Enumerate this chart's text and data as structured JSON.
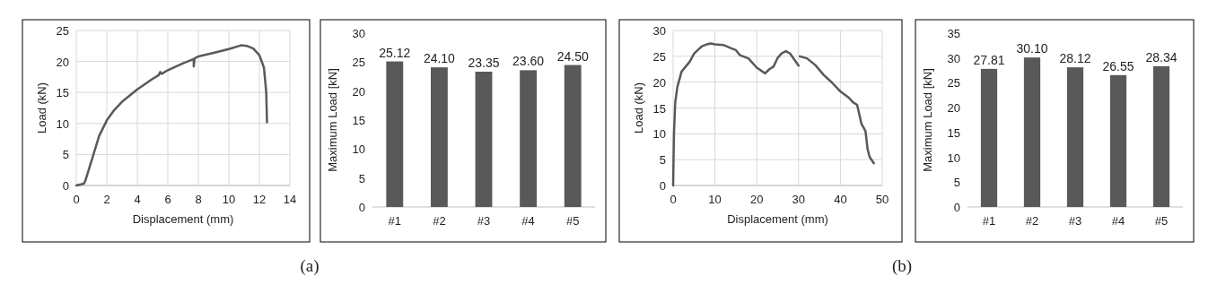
{
  "chart_data": [
    {
      "type": "line",
      "xlabel": "Displacement (mm)",
      "ylabel": "Load (kN)",
      "xlim": [
        0,
        14
      ],
      "xticks": [
        0,
        2,
        4,
        6,
        8,
        10,
        12,
        14
      ],
      "ylim": [
        0,
        25
      ],
      "yticks": [
        0,
        5,
        10,
        15,
        20,
        25
      ],
      "grid": true,
      "annotations": [
        "(a)"
      ],
      "series": [
        {
          "color": "#595959",
          "x": [
            0,
            0.5,
            0.6,
            1,
            1.5,
            2,
            2.5,
            3,
            4,
            5,
            5.4,
            5.5,
            5.6,
            6,
            7,
            7.7,
            7.7,
            7.75,
            8,
            9,
            10,
            10.8,
            11.2,
            11.6,
            12,
            12.3,
            12.45,
            12.5
          ],
          "values": [
            0,
            0.3,
            0.8,
            4,
            8,
            10.5,
            12.2,
            13.5,
            15.5,
            17.2,
            17.8,
            18.3,
            18,
            18.6,
            19.7,
            20.4,
            19.2,
            20.5,
            20.8,
            21.4,
            22,
            22.6,
            22.5,
            22.1,
            21,
            19,
            15,
            10.2
          ]
        }
      ]
    },
    {
      "type": "bar",
      "ylabel": "Maximum Load [kN]",
      "categories": [
        "#1",
        "#2",
        "#3",
        "#4",
        "#5"
      ],
      "values": [
        25.12,
        24.1,
        23.35,
        23.6,
        24.5
      ],
      "value_labels": [
        "25.12",
        "24.10",
        "23.35",
        "23.60",
        "24.50"
      ],
      "color": "#595959",
      "ylim": [
        0,
        30
      ],
      "yticks": [
        0,
        5,
        10,
        15,
        20,
        25,
        30
      ]
    },
    {
      "type": "line",
      "xlabel": "Displacement (mm)",
      "ylabel": "Load (kN)",
      "xlim": [
        0,
        50
      ],
      "xticks": [
        0,
        10,
        20,
        30,
        40,
        50
      ],
      "ylim": [
        0,
        30
      ],
      "yticks": [
        0,
        5,
        10,
        15,
        20,
        25,
        30
      ],
      "grid": true,
      "annotations": [
        "(b)"
      ],
      "series": [
        {
          "color": "#595959",
          "x": [
            0,
            0.2,
            0.5,
            1,
            2,
            3,
            4,
            5,
            6,
            7,
            8,
            9,
            10,
            12,
            14,
            15,
            16,
            18,
            20,
            22,
            23,
            24,
            25,
            26,
            27,
            28,
            30,
            30.15,
            30.3,
            32,
            34,
            36,
            38,
            40,
            42,
            43,
            44,
            45,
            46,
            46.5,
            47,
            48
          ],
          "values": [
            0,
            10,
            16,
            19,
            22,
            23,
            24,
            25.5,
            26.3,
            27,
            27.3,
            27.5,
            27.3,
            27.2,
            26.5,
            26.2,
            25.2,
            24.6,
            22.8,
            21.7,
            22.5,
            23,
            24.7,
            25.6,
            26,
            25.5,
            23.2,
            null,
            25,
            24.6,
            23.3,
            21.4,
            19.9,
            18.2,
            17,
            16.1,
            15.6,
            12,
            10.5,
            7,
            5.5,
            4.3
          ]
        }
      ]
    },
    {
      "type": "bar",
      "ylabel": "Maximum Load [kN]",
      "categories": [
        "#1",
        "#2",
        "#3",
        "#4",
        "#5"
      ],
      "values": [
        27.81,
        30.1,
        28.12,
        26.55,
        28.34
      ],
      "value_labels": [
        "27.81",
        "30.10",
        "28.12",
        "26.55",
        "28.34"
      ],
      "color": "#595959",
      "ylim": [
        0,
        35
      ],
      "yticks": [
        0,
        5,
        10,
        15,
        20,
        25,
        30,
        35
      ]
    }
  ]
}
